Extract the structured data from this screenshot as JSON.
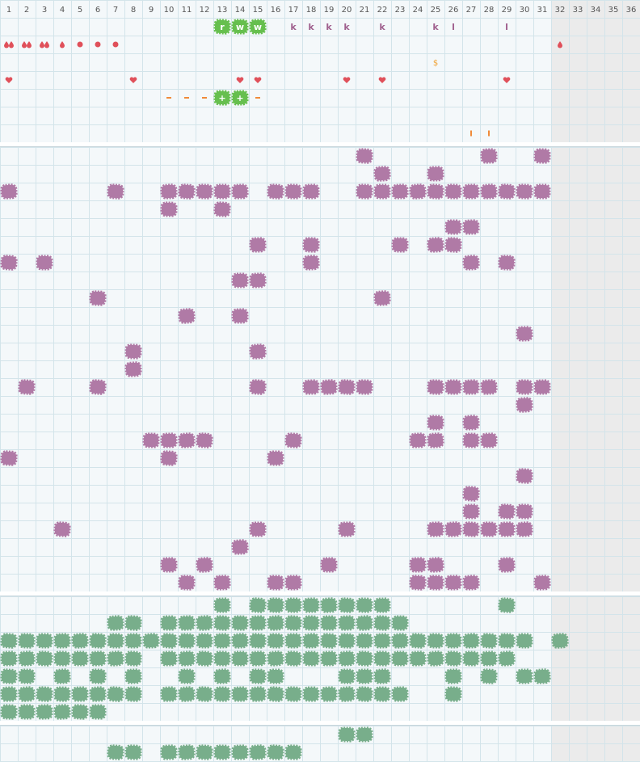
{
  "header": {
    "columns": [
      1,
      2,
      3,
      4,
      5,
      6,
      7,
      8,
      9,
      10,
      11,
      12,
      13,
      14,
      15,
      16,
      17,
      18,
      19,
      20,
      21,
      22,
      23,
      24,
      25,
      26,
      27,
      28,
      29,
      30,
      31,
      32,
      33,
      34,
      35,
      36
    ]
  },
  "top": {
    "row1": [
      "r",
      "w",
      "w",
      "k",
      "k",
      "k",
      "k",
      "k",
      "k",
      "l",
      "l"
    ],
    "row3": "$",
    "row5": [
      "+",
      "+"
    ]
  }
}
